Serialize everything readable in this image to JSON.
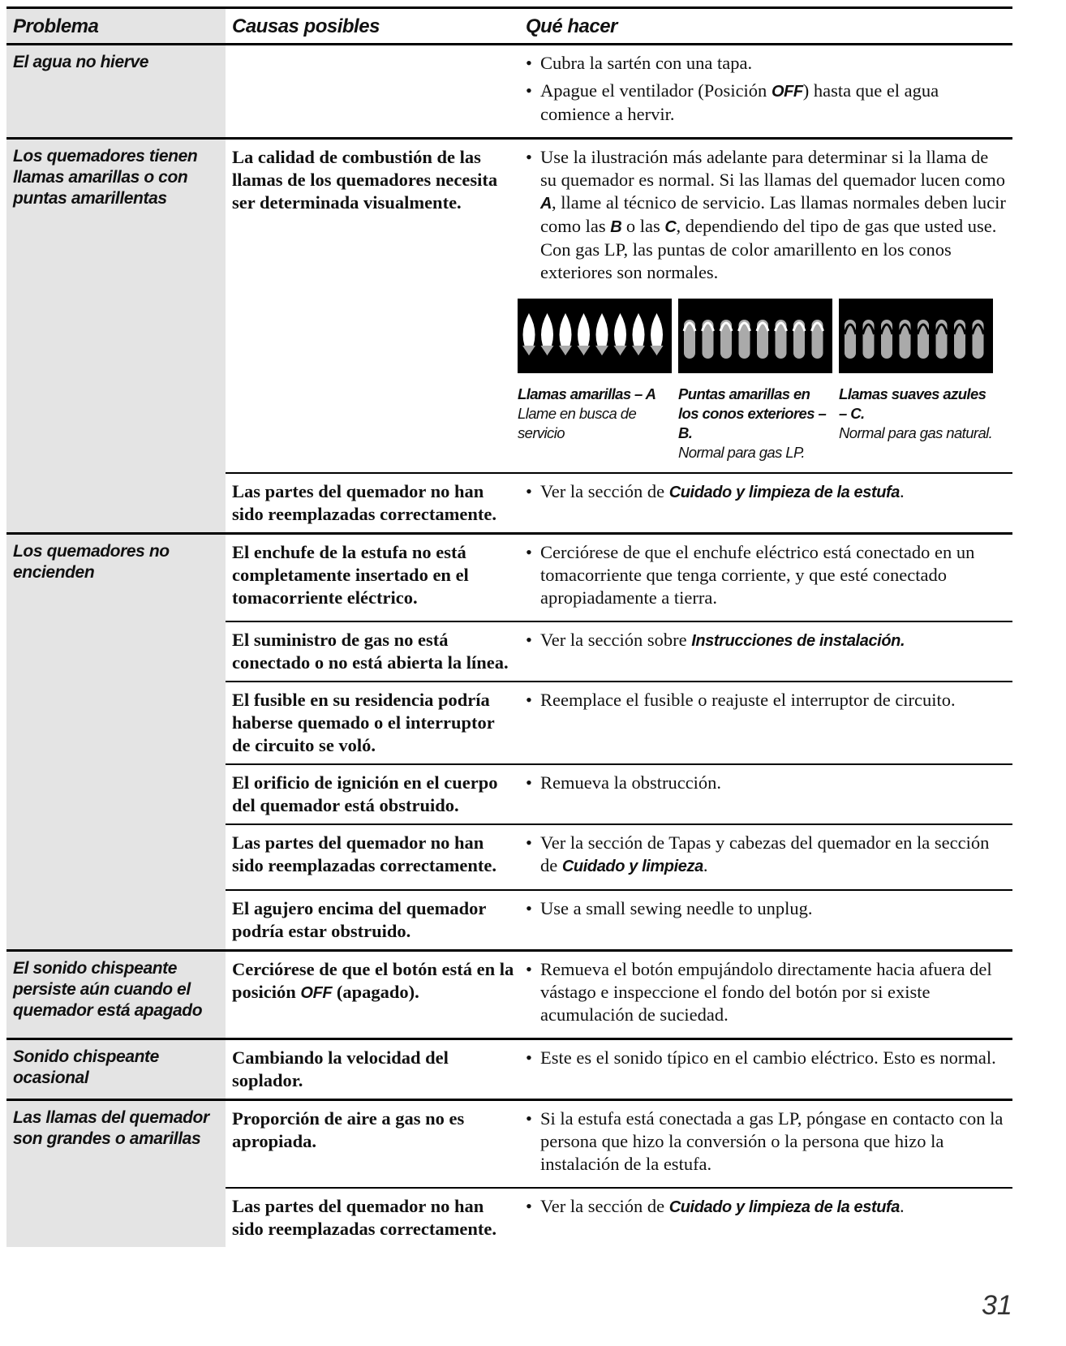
{
  "header": {
    "problem": "Problema",
    "causes": "Causas posibles",
    "actions": "Qué hacer"
  },
  "rows": [
    {
      "problem": "El agua no hierve",
      "entries": [
        {
          "actions": [
            [
              "Cubra la sartén con una tapa."
            ],
            [
              "Apague el ventilador (Posición ",
              "OFF",
              ") hasta que el agua comience a hervir."
            ]
          ]
        }
      ]
    },
    {
      "problem": "Los quemadores tienen llamas amarillas o con puntas amarillentas",
      "entries": [
        {
          "cause": [
            "La calidad de combustión de las llamas de los quemadores necesita ser determinada visualmente."
          ],
          "actions": [
            [
              "Use la ilustración más adelante para determinar si la llama de su quemador es normal. Si las llamas del quemador lucen como ",
              "A",
              ", llame al técnico de servicio. Las llamas normales deben lucir como las ",
              "B",
              " o las ",
              "C",
              ", dependiendo del tipo de gas que usted use. Con gas LP, las puntas de color amarillento en los conos exteriores son normales."
            ]
          ],
          "figures": [
            {
              "title": "Llamas amarillas – A",
              "note": "Llame en busca de servicio"
            },
            {
              "title": "Puntas amarillas en los conos exteriores – B.",
              "note": "Normal para gas LP."
            },
            {
              "title": "Llamas suaves azules – C.",
              "note": "Normal para gas natural."
            }
          ]
        },
        {
          "cause": [
            "Las partes del quemador no han sido reemplazadas correctamente."
          ],
          "actions": [
            [
              "Ver la sección de ",
              "Cuidado y limpieza de la estufa",
              "."
            ]
          ]
        }
      ]
    },
    {
      "problem": "Los quemadores no encienden",
      "entries": [
        {
          "cause": [
            "El enchufe de la estufa no está completamente insertado en el tomacorriente eléctrico."
          ],
          "actions": [
            [
              "Cerciórese de que el enchufe eléctrico está conectado en un tomacorriente que tenga corriente, y que esté conectado apropiadamente a tierra."
            ]
          ]
        },
        {
          "cause": [
            "El suministro de gas no está conectado o no está abierta la línea."
          ],
          "actions": [
            [
              "Ver la sección sobre ",
              "Instrucciones de instalación."
            ]
          ]
        },
        {
          "cause": [
            "El fusible en su residencia podría haberse quemado o el interruptor de circuito se voló."
          ],
          "actions": [
            [
              "Reemplace el fusible o reajuste el interruptor de circuito."
            ]
          ]
        },
        {
          "cause": [
            "El orificio de ignición en el cuerpo del quemador está obstruido."
          ],
          "actions": [
            [
              "Remueva la obstrucción."
            ]
          ]
        },
        {
          "cause": [
            "Las partes del quemador no han sido reemplazadas correctamente."
          ],
          "actions": [
            [
              "Ver la sección de Tapas y cabezas del quemador en la sección de ",
              "Cuidado y limpieza",
              "."
            ]
          ]
        },
        {
          "cause": [
            "El agujero encima del quemador podría estar obstruido."
          ],
          "actions": [
            [
              "Use a small sewing needle to unplug."
            ]
          ]
        }
      ]
    },
    {
      "problem": "El sonido chispeante persiste aún cuando el quemador está apagado",
      "entries": [
        {
          "cause": [
            "Cerciórese de que el botón está en la posición ",
            "OFF",
            " (apagado)."
          ],
          "actions": [
            [
              "Remueva el botón empujándolo directamente hacia afuera del vástago e inspeccione el fondo del botón por si existe acumulación de suciedad."
            ]
          ]
        }
      ]
    },
    {
      "problem": "Sonido chispeante ocasional",
      "entries": [
        {
          "cause": [
            "Cambiando la velocidad del soplador."
          ],
          "actions": [
            [
              "Este es el sonido típico en el cambio eléctrico. Esto es normal."
            ]
          ]
        }
      ]
    },
    {
      "problem": "Las llamas del quemador son grandes o amarillas",
      "entries": [
        {
          "cause": [
            "Proporción de aire a gas no es apropiada."
          ],
          "actions": [
            [
              "Si la estufa está conectada a gas LP, póngase en contacto con la persona que hizo la conversión o la persona que hizo la instalación de la estufa."
            ]
          ]
        },
        {
          "cause": [
            "Las partes del quemador no han sido reemplazadas correctamente."
          ],
          "actions": [
            [
              "Ver la sección de ",
              "Cuidado y limpieza de la estufa",
              "."
            ]
          ]
        }
      ]
    }
  ],
  "page_number": "31"
}
